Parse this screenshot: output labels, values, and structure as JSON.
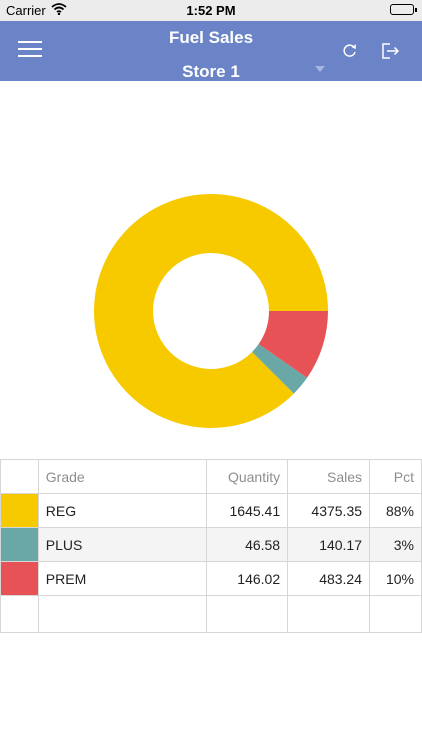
{
  "status_bar": {
    "carrier": "Carrier",
    "time": "1:52 PM"
  },
  "header": {
    "title": "Fuel Sales",
    "store": "Store 1",
    "icons": [
      "menu-icon",
      "refresh-icon",
      "logout-icon"
    ]
  },
  "chart_data": {
    "type": "pie",
    "style": "donut",
    "categories": [
      "REG",
      "PLUS",
      "PREM"
    ],
    "values": [
      4375.35,
      140.17,
      483.24
    ],
    "colors": [
      "#f7ca00",
      "#6aa8a8",
      "#e75256"
    ]
  },
  "table": {
    "headers": {
      "grade": "Grade",
      "quantity": "Quantity",
      "sales": "Sales",
      "pct": "Pct"
    },
    "rows": [
      {
        "color": "#f7ca00",
        "grade": "REG",
        "quantity": "1645.41",
        "sales": "4375.35",
        "pct": "88%"
      },
      {
        "color": "#6aa8a8",
        "grade": "PLUS",
        "quantity": "46.58",
        "sales": "140.17",
        "pct": "3%"
      },
      {
        "color": "#e75256",
        "grade": "PREM",
        "quantity": "146.02",
        "sales": "483.24",
        "pct": "10%"
      }
    ]
  }
}
